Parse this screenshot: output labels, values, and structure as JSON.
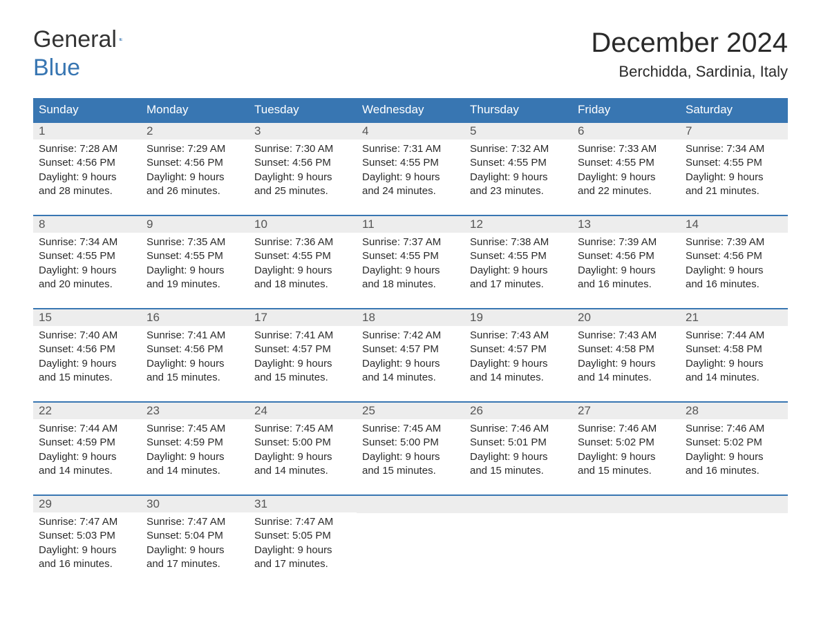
{
  "logo": {
    "word1": "General",
    "word2": "Blue"
  },
  "title": "December 2024",
  "location": "Berchidda, Sardinia, Italy",
  "colors": {
    "header_bg": "#3876b2",
    "header_fg": "#ffffff",
    "daynum_bg": "#ededed",
    "daynum_fg": "#555555",
    "text": "#2a2a2a",
    "rule": "#3876b2",
    "page_bg": "#ffffff",
    "logo_accent": "#3876b2"
  },
  "typography": {
    "title_fontsize": 40,
    "location_fontsize": 22,
    "weekday_fontsize": 17,
    "daynum_fontsize": 17,
    "body_fontsize": 15,
    "logo_fontsize": 34
  },
  "weekdays": [
    "Sunday",
    "Monday",
    "Tuesday",
    "Wednesday",
    "Thursday",
    "Friday",
    "Saturday"
  ],
  "labels": {
    "sunrise": "Sunrise:",
    "sunset": "Sunset:",
    "daylight": "Daylight:"
  },
  "weeks": [
    [
      {
        "n": "1",
        "sunrise": "7:28 AM",
        "sunset": "4:56 PM",
        "dl1": "9 hours",
        "dl2": "and 28 minutes."
      },
      {
        "n": "2",
        "sunrise": "7:29 AM",
        "sunset": "4:56 PM",
        "dl1": "9 hours",
        "dl2": "and 26 minutes."
      },
      {
        "n": "3",
        "sunrise": "7:30 AM",
        "sunset": "4:56 PM",
        "dl1": "9 hours",
        "dl2": "and 25 minutes."
      },
      {
        "n": "4",
        "sunrise": "7:31 AM",
        "sunset": "4:55 PM",
        "dl1": "9 hours",
        "dl2": "and 24 minutes."
      },
      {
        "n": "5",
        "sunrise": "7:32 AM",
        "sunset": "4:55 PM",
        "dl1": "9 hours",
        "dl2": "and 23 minutes."
      },
      {
        "n": "6",
        "sunrise": "7:33 AM",
        "sunset": "4:55 PM",
        "dl1": "9 hours",
        "dl2": "and 22 minutes."
      },
      {
        "n": "7",
        "sunrise": "7:34 AM",
        "sunset": "4:55 PM",
        "dl1": "9 hours",
        "dl2": "and 21 minutes."
      }
    ],
    [
      {
        "n": "8",
        "sunrise": "7:34 AM",
        "sunset": "4:55 PM",
        "dl1": "9 hours",
        "dl2": "and 20 minutes."
      },
      {
        "n": "9",
        "sunrise": "7:35 AM",
        "sunset": "4:55 PM",
        "dl1": "9 hours",
        "dl2": "and 19 minutes."
      },
      {
        "n": "10",
        "sunrise": "7:36 AM",
        "sunset": "4:55 PM",
        "dl1": "9 hours",
        "dl2": "and 18 minutes."
      },
      {
        "n": "11",
        "sunrise": "7:37 AM",
        "sunset": "4:55 PM",
        "dl1": "9 hours",
        "dl2": "and 18 minutes."
      },
      {
        "n": "12",
        "sunrise": "7:38 AM",
        "sunset": "4:55 PM",
        "dl1": "9 hours",
        "dl2": "and 17 minutes."
      },
      {
        "n": "13",
        "sunrise": "7:39 AM",
        "sunset": "4:56 PM",
        "dl1": "9 hours",
        "dl2": "and 16 minutes."
      },
      {
        "n": "14",
        "sunrise": "7:39 AM",
        "sunset": "4:56 PM",
        "dl1": "9 hours",
        "dl2": "and 16 minutes."
      }
    ],
    [
      {
        "n": "15",
        "sunrise": "7:40 AM",
        "sunset": "4:56 PM",
        "dl1": "9 hours",
        "dl2": "and 15 minutes."
      },
      {
        "n": "16",
        "sunrise": "7:41 AM",
        "sunset": "4:56 PM",
        "dl1": "9 hours",
        "dl2": "and 15 minutes."
      },
      {
        "n": "17",
        "sunrise": "7:41 AM",
        "sunset": "4:57 PM",
        "dl1": "9 hours",
        "dl2": "and 15 minutes."
      },
      {
        "n": "18",
        "sunrise": "7:42 AM",
        "sunset": "4:57 PM",
        "dl1": "9 hours",
        "dl2": "and 14 minutes."
      },
      {
        "n": "19",
        "sunrise": "7:43 AM",
        "sunset": "4:57 PM",
        "dl1": "9 hours",
        "dl2": "and 14 minutes."
      },
      {
        "n": "20",
        "sunrise": "7:43 AM",
        "sunset": "4:58 PM",
        "dl1": "9 hours",
        "dl2": "and 14 minutes."
      },
      {
        "n": "21",
        "sunrise": "7:44 AM",
        "sunset": "4:58 PM",
        "dl1": "9 hours",
        "dl2": "and 14 minutes."
      }
    ],
    [
      {
        "n": "22",
        "sunrise": "7:44 AM",
        "sunset": "4:59 PM",
        "dl1": "9 hours",
        "dl2": "and 14 minutes."
      },
      {
        "n": "23",
        "sunrise": "7:45 AM",
        "sunset": "4:59 PM",
        "dl1": "9 hours",
        "dl2": "and 14 minutes."
      },
      {
        "n": "24",
        "sunrise": "7:45 AM",
        "sunset": "5:00 PM",
        "dl1": "9 hours",
        "dl2": "and 14 minutes."
      },
      {
        "n": "25",
        "sunrise": "7:45 AM",
        "sunset": "5:00 PM",
        "dl1": "9 hours",
        "dl2": "and 15 minutes."
      },
      {
        "n": "26",
        "sunrise": "7:46 AM",
        "sunset": "5:01 PM",
        "dl1": "9 hours",
        "dl2": "and 15 minutes."
      },
      {
        "n": "27",
        "sunrise": "7:46 AM",
        "sunset": "5:02 PM",
        "dl1": "9 hours",
        "dl2": "and 15 minutes."
      },
      {
        "n": "28",
        "sunrise": "7:46 AM",
        "sunset": "5:02 PM",
        "dl1": "9 hours",
        "dl2": "and 16 minutes."
      }
    ],
    [
      {
        "n": "29",
        "sunrise": "7:47 AM",
        "sunset": "5:03 PM",
        "dl1": "9 hours",
        "dl2": "and 16 minutes."
      },
      {
        "n": "30",
        "sunrise": "7:47 AM",
        "sunset": "5:04 PM",
        "dl1": "9 hours",
        "dl2": "and 17 minutes."
      },
      {
        "n": "31",
        "sunrise": "7:47 AM",
        "sunset": "5:05 PM",
        "dl1": "9 hours",
        "dl2": "and 17 minutes."
      },
      null,
      null,
      null,
      null
    ]
  ]
}
